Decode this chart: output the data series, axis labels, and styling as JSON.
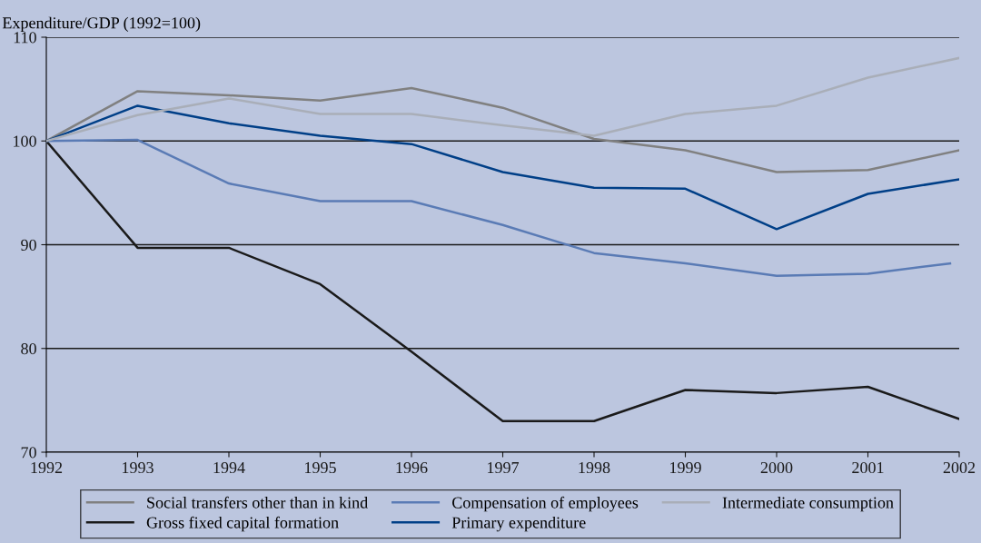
{
  "chart_data": {
    "type": "line",
    "ylabel": "Expenditure/GDP (1992=100)",
    "x": [
      1992,
      1993,
      1994,
      1995,
      1996,
      1997,
      1998,
      1999,
      2000,
      2001,
      2002
    ],
    "series": [
      {
        "name": "Social transfers other than in kind",
        "color": "#808080",
        "values": [
          100,
          104.8,
          104.4,
          103.9,
          105.1,
          103.2,
          100.2,
          99.1,
          97.0,
          97.2,
          99.1
        ]
      },
      {
        "name": "Gross fixed capital formation",
        "color": "#1a1a1a",
        "values": [
          100,
          89.7,
          89.7,
          86.2,
          79.7,
          73.0,
          73.0,
          76.0,
          75.7,
          76.3,
          73.2
        ]
      },
      {
        "name": "Compensation of employees",
        "color": "#5a7bb5",
        "x": [
          1992,
          1993,
          1994,
          1995,
          1996,
          1997,
          1998,
          1999,
          2000,
          2001,
          2001.9
        ],
        "values": [
          100,
          100.1,
          95.9,
          94.2,
          94.2,
          91.9,
          89.2,
          88.2,
          87.0,
          87.2,
          88.2
        ]
      },
      {
        "name": "Primary expenditure",
        "color": "#003f87",
        "values": [
          100,
          103.4,
          101.7,
          100.5,
          99.7,
          97.0,
          95.5,
          95.4,
          91.5,
          94.9,
          96.3
        ]
      },
      {
        "name": "Intermediate consumption",
        "color": "#a9aeb8",
        "values": [
          100,
          102.5,
          104.1,
          102.6,
          102.6,
          101.5,
          100.5,
          102.6,
          103.4,
          106.1,
          108.0
        ]
      }
    ],
    "xlim": [
      1992,
      2002
    ],
    "xticks": [
      1992,
      1993,
      1994,
      1995,
      1996,
      1997,
      1998,
      1999,
      2000,
      2001,
      2002
    ],
    "ylim": [
      70,
      110
    ],
    "yticks": [
      70,
      80,
      90,
      100,
      110
    ],
    "grid": "y",
    "legend": "bottom",
    "marker": "none",
    "line_style": "solid"
  }
}
